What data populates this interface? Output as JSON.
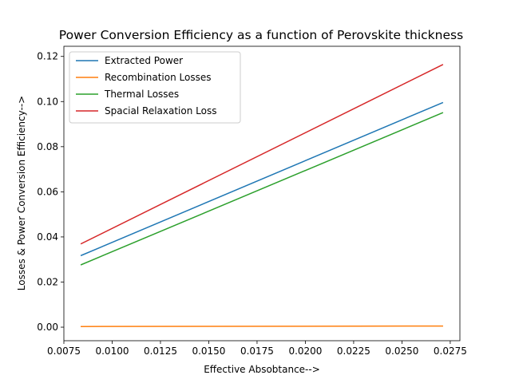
{
  "chart_data": {
    "type": "line",
    "title": "Power Conversion Efficiency as a function of Perovskite thickness",
    "xlabel": "Effective Absobtance-->",
    "ylabel": "Losses & Power Conversion Efficiency-->",
    "xlim": [
      0.0075,
      0.028
    ],
    "ylim": [
      -0.006,
      0.1245
    ],
    "x_ticks": [
      0.0075,
      0.01,
      0.0125,
      0.015,
      0.0175,
      0.02,
      0.0225,
      0.025,
      0.0275
    ],
    "x_tick_labels": [
      "0.0075",
      "0.0100",
      "0.0125",
      "0.0150",
      "0.0175",
      "0.0200",
      "0.0225",
      "0.0250",
      "0.0275"
    ],
    "y_ticks": [
      0.0,
      0.02,
      0.04,
      0.06,
      0.08,
      0.1,
      0.12
    ],
    "y_tick_labels": [
      "0.00",
      "0.02",
      "0.04",
      "0.06",
      "0.08",
      "0.10",
      "0.12"
    ],
    "grid": false,
    "legend_position": "top-left",
    "series": [
      {
        "name": "Extracted Power",
        "color": "#1f77b4",
        "x": [
          0.0084,
          0.0271
        ],
        "y": [
          0.0318,
          0.0995
        ]
      },
      {
        "name": "Recombination Losses",
        "color": "#ff7f0e",
        "x": [
          0.0084,
          0.0271
        ],
        "y": [
          0.0003,
          0.0005
        ]
      },
      {
        "name": "Thermal Losses",
        "color": "#2ca02c",
        "x": [
          0.0084,
          0.0271
        ],
        "y": [
          0.0277,
          0.095
        ]
      },
      {
        "name": "Spacial Relaxation Loss",
        "color": "#d62728",
        "x": [
          0.0084,
          0.0271
        ],
        "y": [
          0.037,
          0.1163
        ]
      }
    ]
  }
}
